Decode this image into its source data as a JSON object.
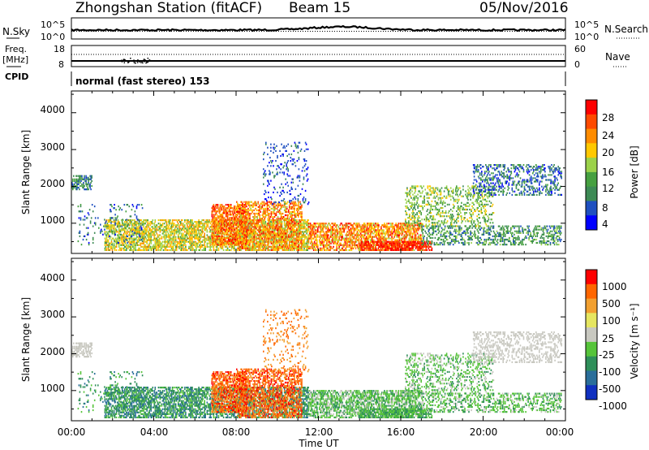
{
  "header": {
    "station_title": "Zhongshan Station (fitACF)",
    "beam_label": "Beam 15",
    "date": "05/Nov/2016"
  },
  "nsky_panel": {
    "left_label": "N.Sky",
    "right_label": "N.Search",
    "left_ticks": [
      "10^5",
      "10^0"
    ],
    "right_ticks": [
      "10^5",
      "10^0"
    ]
  },
  "freq_panel": {
    "left_label_line1": "Freq.",
    "left_label_line2": "[MHz]",
    "right_label": "Nave",
    "left_ticks": [
      "18",
      "8"
    ],
    "right_ticks": [
      "60",
      "0"
    ]
  },
  "cpid": {
    "label": "CPID",
    "value": "normal (fast stereo) 153"
  },
  "x_axis": {
    "label": "Time UT",
    "ticks": [
      "00:00",
      "04:00",
      "08:00",
      "12:00",
      "16:00",
      "20:00",
      "00:00"
    ]
  },
  "colors": {
    "power_scale": [
      "#0000ff",
      "#1f50c0",
      "#3d8a55",
      "#46a040",
      "#9bd24a",
      "#ffc800",
      "#ff8c00",
      "#ff4a00",
      "#ff0000"
    ],
    "velocity_scale": [
      "#1030c0",
      "#2a6e9a",
      "#2f8f5a",
      "#56c43a",
      "#c8c8c0",
      "#e6e660",
      "#f2a030",
      "#ff6600",
      "#ff0000"
    ]
  },
  "chart_data": [
    {
      "type": "heatmap",
      "name": "power",
      "ylabel": "Slant Range [km]",
      "ylim": [
        180,
        4590
      ],
      "yticks": [
        "1000",
        "2000",
        "3000",
        "4000"
      ],
      "xlim_hours": [
        0,
        24
      ],
      "colorbar_label": "Power [dB]",
      "colorbar_ticks": [
        "4",
        "8",
        "12",
        "16",
        "20",
        "24",
        "28"
      ],
      "colorbar_range": [
        0,
        30
      ]
    },
    {
      "type": "heatmap",
      "name": "velocity",
      "ylabel": "Slant Range [km]",
      "ylim": [
        180,
        4590
      ],
      "yticks": [
        "1000",
        "2000",
        "3000",
        "4000"
      ],
      "xlim_hours": [
        0,
        24
      ],
      "colorbar_label": "Velocity [m s⁻¹]",
      "colorbar_ticks": [
        "1000",
        "500",
        "100",
        "25",
        "-25",
        "-100",
        "-500",
        "-1000"
      ]
    }
  ]
}
